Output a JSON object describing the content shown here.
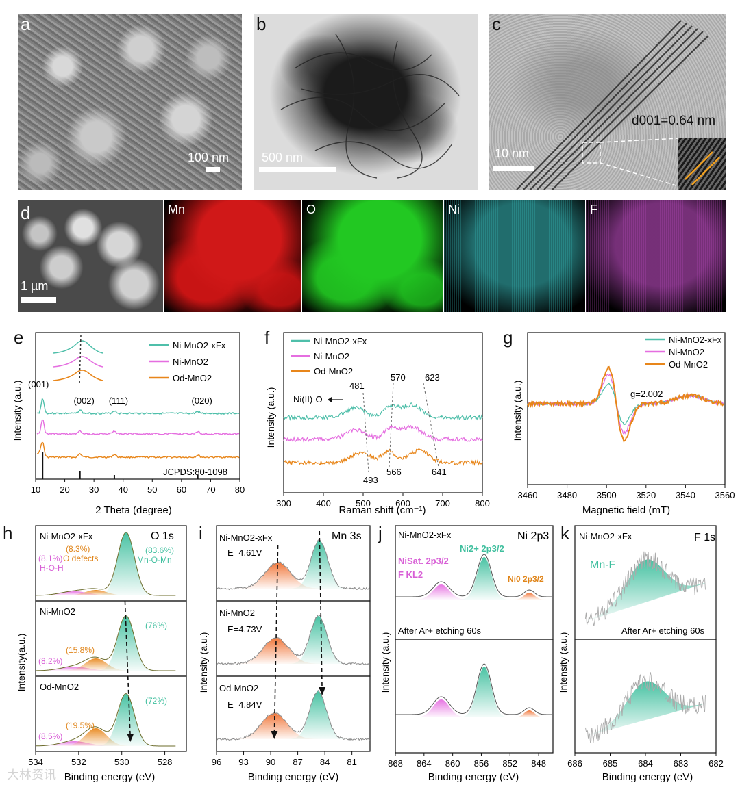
{
  "row1": {
    "a": {
      "letter": "a",
      "scale": "100 nm"
    },
    "b": {
      "letter": "b",
      "scale": "500 nm"
    },
    "c": {
      "letter": "c",
      "scale": "10 nm",
      "spacing_label": "d001=0.64 nm"
    }
  },
  "row2": {
    "d": {
      "letter": "d",
      "scale": "1 µm"
    },
    "maps": [
      {
        "label": "Mn",
        "color": "#d01818"
      },
      {
        "label": "O",
        "color": "#22c822"
      },
      {
        "label": "Ni",
        "color": "#3cc7c7"
      },
      {
        "label": "F",
        "color": "#c44fc8"
      }
    ]
  },
  "legend_samples": [
    "Ni-MnO2-xFx",
    "Ni-MnO2",
    "Od-MnO2"
  ],
  "series_colors": {
    "Ni-MnO2-xFx": "#4fbfaa",
    "Ni-MnO2": "#e56ee0",
    "Od-MnO2": "#e8861a"
  },
  "chart_data": [
    {
      "panel": "e",
      "type": "line",
      "xlabel": "2 Theta (degree)",
      "ylabel": "Intensity (a.u.)",
      "xlim": [
        10,
        80
      ],
      "xticks": [
        10,
        20,
        30,
        40,
        50,
        60,
        70,
        80
      ],
      "peaks": [
        {
          "label": "(001)",
          "x": 12.4
        },
        {
          "label": "(002)",
          "x": 25.2
        },
        {
          "label": "(111)",
          "x": 37
        },
        {
          "label": "(020)",
          "x": 65.6
        }
      ],
      "reference": "JCPDS:80-1098",
      "reference_lines": [
        12.4,
        25.2,
        37,
        65.6
      ],
      "series": [
        {
          "name": "Ni-MnO2-xFx"
        },
        {
          "name": "Ni-MnO2"
        },
        {
          "name": "Od-MnO2"
        }
      ]
    },
    {
      "panel": "f",
      "type": "line",
      "xlabel": "Raman shift (cm⁻¹)",
      "ylabel": "Intensity (a.u.)",
      "xlim": [
        300,
        800
      ],
      "xticks": [
        300,
        400,
        500,
        600,
        700,
        800
      ],
      "annotations_top": [
        "481",
        "570",
        "623"
      ],
      "annotations_bottom": [
        "493",
        "566",
        "641"
      ],
      "note": "Ni(II)-O",
      "series": [
        {
          "name": "Ni-MnO2-xFx"
        },
        {
          "name": "Ni-MnO2"
        },
        {
          "name": "Od-MnO2"
        }
      ]
    },
    {
      "panel": "g",
      "type": "line",
      "xlabel": "Magnetic field (mT)",
      "ylabel": "Intensity (a.u.)",
      "xlim": [
        3460,
        3560
      ],
      "xticks": [
        3460,
        3480,
        3500,
        3520,
        3540,
        3560
      ],
      "annotation": "g=2.002",
      "series": [
        {
          "name": "Ni-MnO2-xFx"
        },
        {
          "name": "Ni-MnO2"
        },
        {
          "name": "Od-MnO2"
        }
      ]
    },
    {
      "panel": "h",
      "type": "area",
      "title": "O 1s",
      "xlabel": "Binding energy (eV)",
      "ylabel": "Intensity(a.u.)",
      "xlim": [
        534,
        527
      ],
      "xticks": [
        534,
        532,
        530,
        528
      ],
      "subpanels": [
        {
          "sample": "Ni-MnO2-xFx",
          "h_o_h": "(8.1%)",
          "o_defects": "(8.3%)",
          "mn_o_mn": "(83.6%)",
          "labels": [
            "H-O-H",
            "O defects",
            "Mn-O-Mn"
          ]
        },
        {
          "sample": "Ni-MnO2",
          "h_o_h": "(8.2%)",
          "o_defects": "(15.8%)",
          "mn_o_mn": "(76%)"
        },
        {
          "sample": "Od-MnO2",
          "h_o_h": "(8.5%)",
          "o_defects": "(19.5%)",
          "mn_o_mn": "(72%)"
        }
      ]
    },
    {
      "panel": "i",
      "type": "area",
      "title": "Mn 3s",
      "xlabel": "Binding energy (eV)",
      "ylabel": "Intensity (a.u.)",
      "xlim": [
        96,
        79
      ],
      "xticks": [
        96,
        93,
        90,
        87,
        84,
        81
      ],
      "subpanels": [
        {
          "sample": "Ni-MnO2-xFx",
          "delta": "E=4.61V"
        },
        {
          "sample": "Ni-MnO2",
          "delta": "E=4.73V"
        },
        {
          "sample": "Od-MnO2",
          "delta": "E=4.84V"
        }
      ]
    },
    {
      "panel": "j",
      "type": "area",
      "title": "Ni 2p3",
      "xlabel": "Binding energy (eV)",
      "ylabel": "Intensity (a.u.)",
      "xlim": [
        868,
        846
      ],
      "xticks": [
        868,
        864,
        860,
        856,
        852,
        848
      ],
      "sample": "Ni-MnO2-xFx",
      "labels": [
        "NiSat. 2p3/2",
        "F KL2",
        "Ni2+ 2p3/2",
        "Ni0 2p3/2"
      ],
      "note": "After Ar+ etching 60s"
    },
    {
      "panel": "k",
      "type": "area",
      "title": "F 1s",
      "xlabel": "Binding energy (eV)",
      "ylabel": "Intensity (a.u.)",
      "xlim": [
        686,
        682
      ],
      "xticks": [
        686,
        685,
        684,
        683,
        682
      ],
      "sample": "Ni-MnO2-xFx",
      "label": "Mn-F",
      "note": "After Ar+ etching 60s"
    }
  ],
  "watermark": "大林资讯"
}
